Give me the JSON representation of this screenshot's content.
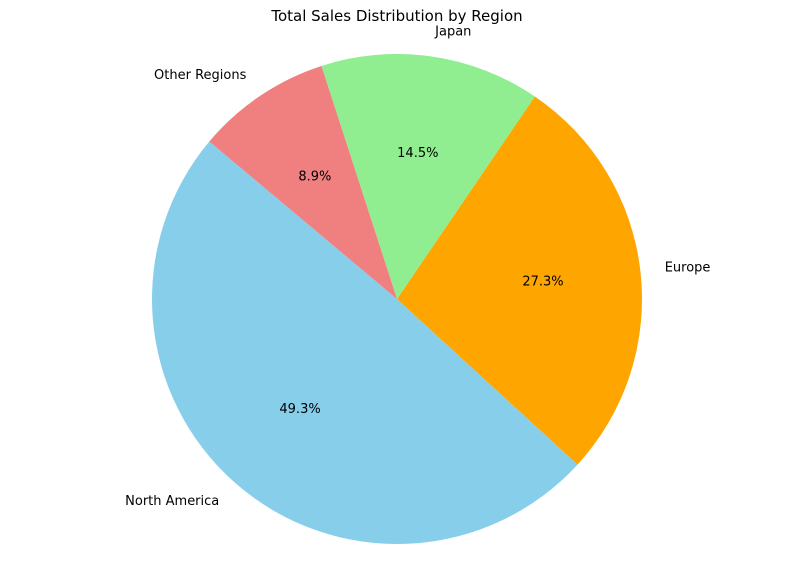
{
  "chart_data": {
    "type": "pie",
    "title": "Total Sales Distribution by Region",
    "slices": [
      {
        "label": "North America",
        "value": 49.3,
        "pct_label": "49.3%",
        "color": "#87CEEB"
      },
      {
        "label": "Europe",
        "value": 27.3,
        "pct_label": "27.3%",
        "color": "#FFA500"
      },
      {
        "label": "Japan",
        "value": 14.5,
        "pct_label": "14.5%",
        "color": "#90EE90"
      },
      {
        "label": "Other Regions",
        "value": 8.9,
        "pct_label": "8.9%",
        "color": "#F08080"
      }
    ],
    "start_angle_deg": 140,
    "direction": "counterclockwise",
    "legend": "none"
  }
}
